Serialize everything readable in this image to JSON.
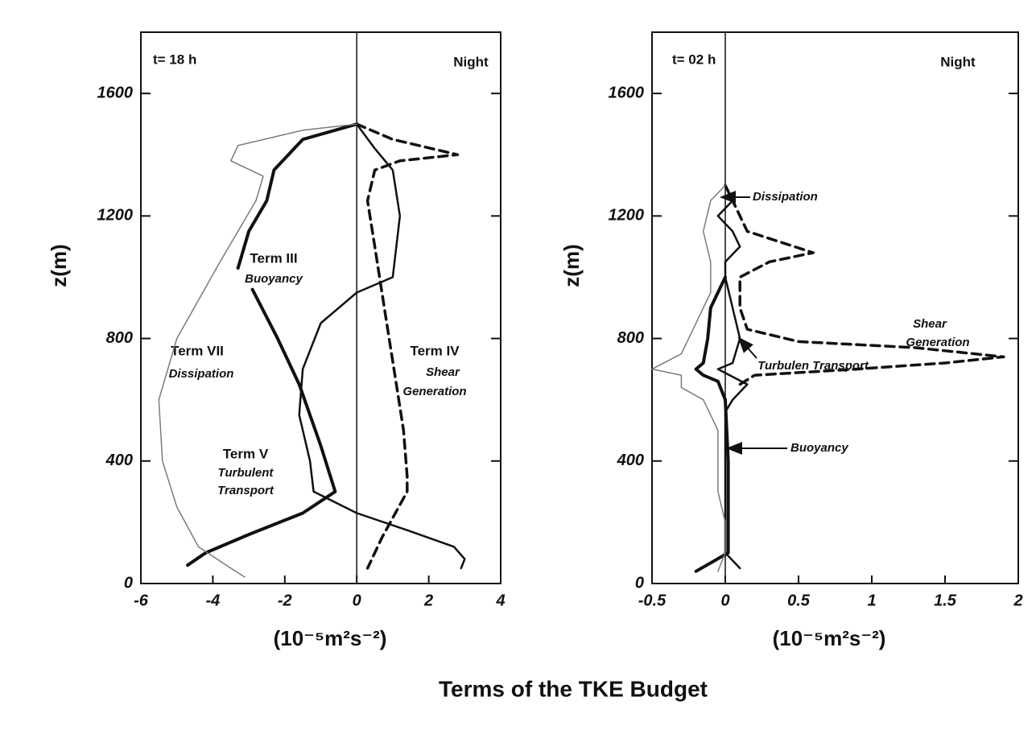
{
  "title": "Terms of the TKE Budget",
  "chart_data": [
    {
      "type": "line",
      "xlabel": "(10⁻⁵m²s⁻²)",
      "ylabel": "z(m)",
      "xlim": [
        -6,
        4
      ],
      "xticks": [
        -6,
        -4,
        -2,
        0,
        2,
        4
      ],
      "ylim": [
        0,
        1800
      ],
      "yticks": [
        0,
        400,
        800,
        1200,
        1600
      ],
      "annotations": [
        "t= 18 h",
        "Night",
        "Term III",
        "Buoyancy",
        "Term VII",
        "Dissipation",
        "Term IV",
        "Shear",
        "Generation",
        "Term V",
        "Turbulent",
        "Transport"
      ],
      "series": [
        {
          "color": "#111",
          "style": "thick",
          "x": [
            0,
            -1.5,
            -2.3,
            -2.5,
            -3.0,
            -3.3,
            null,
            -2.9,
            -2.2,
            -1.6,
            -1.0,
            -0.6,
            -1.5,
            -3.0,
            -4.2,
            -4.7
          ],
          "values": [
            1500,
            1450,
            1350,
            1250,
            1150,
            1030,
            null,
            960,
            800,
            650,
            450,
            300,
            230,
            160,
            100,
            60
          ]
        },
        {
          "color": "#111",
          "style": "solid",
          "x": [
            0,
            0.5,
            1.0,
            1.2,
            1.0,
            0,
            -1.0,
            -1.5,
            -1.6,
            -1.3,
            -1.2,
            0,
            1.5,
            2.7,
            3.0,
            2.9
          ],
          "values": [
            1500,
            1420,
            1350,
            1200,
            1000,
            950,
            850,
            700,
            550,
            400,
            300,
            230,
            170,
            120,
            80,
            50
          ]
        },
        {
          "color": "#111",
          "style": "dashed",
          "x": [
            0,
            1.0,
            2.8,
            1.2,
            0.5,
            0.3,
            0.5,
            0.7,
            0.9,
            1.1,
            1.3,
            1.4,
            1.4,
            0.7,
            0.3
          ],
          "values": [
            1500,
            1450,
            1400,
            1380,
            1350,
            1250,
            1100,
            950,
            800,
            650,
            500,
            350,
            300,
            150,
            50
          ]
        },
        {
          "color": "#777",
          "style": "dotted",
          "x": [
            0,
            -1.5,
            -3.3,
            -3.5,
            -2.6,
            -2.8,
            -3.8,
            -5.0,
            -5.5,
            -5.4,
            -5.0,
            -4.4,
            -3.5,
            -3.1
          ],
          "values": [
            1500,
            1480,
            1430,
            1380,
            1330,
            1250,
            1050,
            800,
            600,
            400,
            250,
            120,
            50,
            20
          ]
        }
      ]
    },
    {
      "type": "line",
      "xlabel": "(10⁻⁵m²s⁻²)",
      "ylabel": "z(m)",
      "xlim": [
        -0.5,
        2
      ],
      "xticks": [
        -0.5,
        0,
        0.5,
        1,
        1.5,
        2
      ],
      "ylim": [
        0,
        1800
      ],
      "yticks": [
        0,
        400,
        800,
        1200,
        1600
      ],
      "annotations": [
        "t= 02 h",
        "Night",
        "Dissipation",
        "Shear",
        "Generation",
        "Turbulen Transport",
        "Buoyancy"
      ],
      "series": [
        {
          "color": "#111",
          "style": "thick",
          "x": [
            0,
            -0.1,
            -0.12,
            -0.15,
            -0.2,
            -0.15,
            -0.05,
            0,
            0.02,
            0.02,
            -0.2
          ],
          "values": [
            1000,
            900,
            800,
            720,
            700,
            680,
            660,
            600,
            400,
            100,
            40
          ]
        },
        {
          "color": "#111",
          "style": "solid",
          "x": [
            0,
            0.05,
            -0.05,
            0.05,
            0.1,
            0,
            0,
            0.05,
            0.1,
            0.05,
            -0.05,
            0.15,
            0.05,
            0,
            0,
            0.1
          ],
          "values": [
            1300,
            1250,
            1200,
            1150,
            1100,
            1050,
            1000,
            900,
            800,
            720,
            700,
            650,
            600,
            560,
            100,
            50
          ]
        },
        {
          "color": "#111",
          "style": "dashed",
          "x": [
            0,
            0.1,
            0.15,
            0.6,
            0.3,
            0.1,
            0.1,
            0.15,
            0.5,
            1.3,
            1.9,
            1.5,
            0.9,
            0.2,
            0.1
          ],
          "values": [
            1300,
            1200,
            1150,
            1080,
            1050,
            1000,
            900,
            830,
            790,
            770,
            740,
            720,
            700,
            680,
            650
          ]
        },
        {
          "color": "#777",
          "style": "dotted",
          "x": [
            0,
            -0.1,
            -0.15,
            -0.1,
            -0.1,
            -0.2,
            -0.3,
            -0.5,
            -0.3,
            -0.3,
            -0.15,
            -0.05,
            -0.05,
            0,
            0,
            -0.05
          ],
          "values": [
            1300,
            1250,
            1150,
            1050,
            950,
            850,
            750,
            700,
            680,
            640,
            600,
            500,
            300,
            200,
            100,
            40
          ]
        }
      ]
    }
  ]
}
